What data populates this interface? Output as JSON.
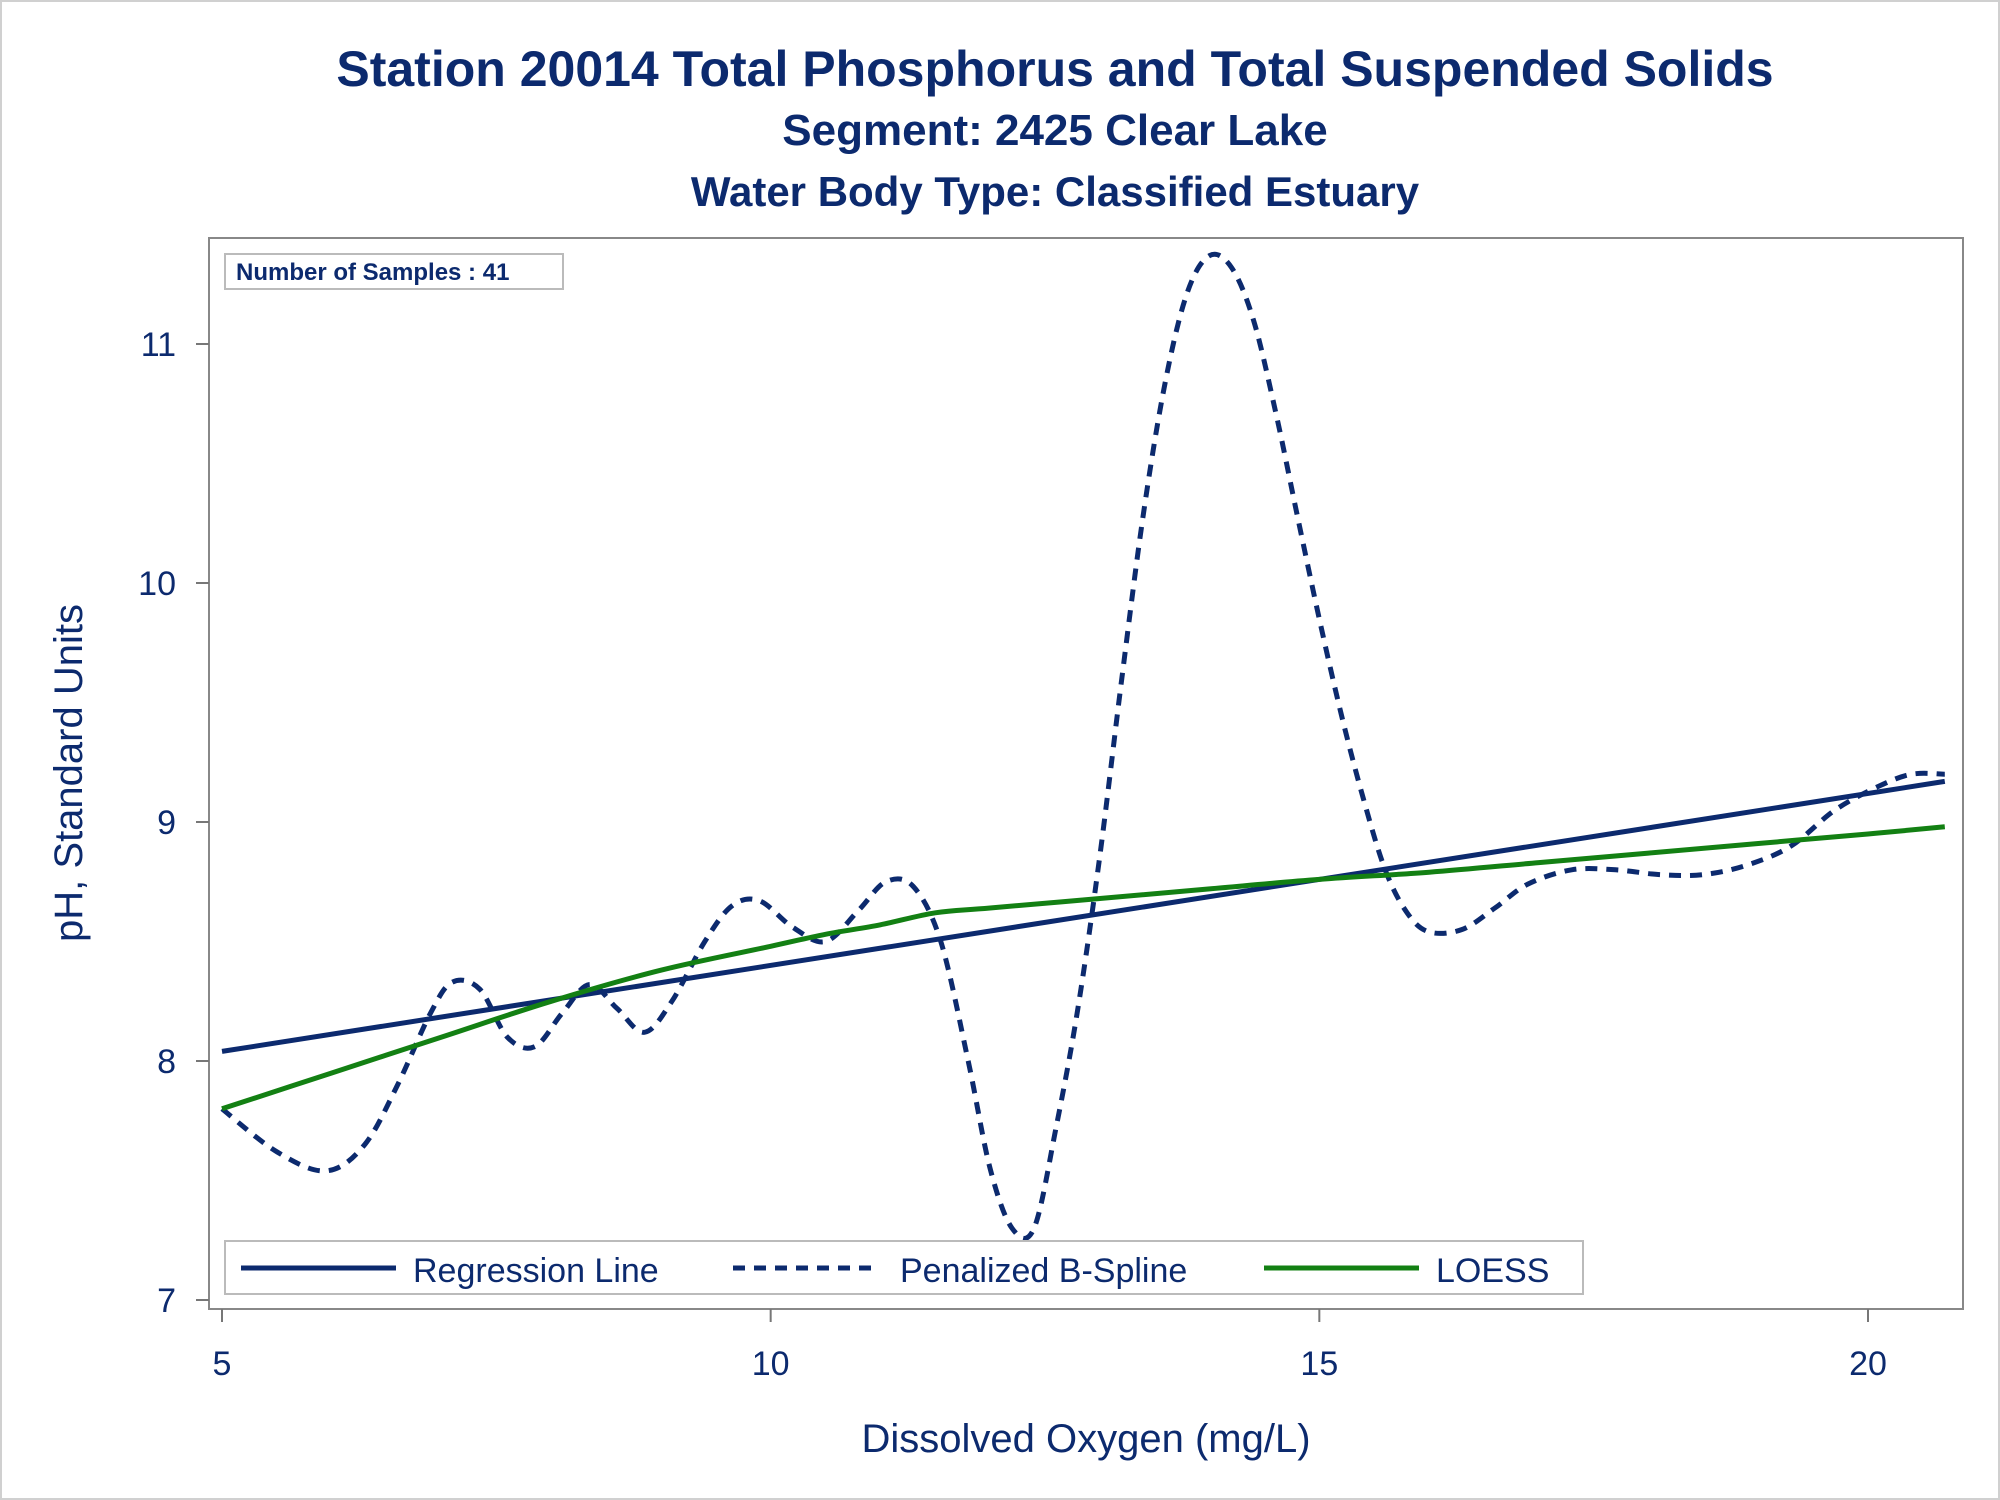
{
  "chart_data": {
    "type": "line",
    "title": "Station 20014  Total Phosphorus and Total Suspended Solids",
    "subtitle": "Segment: 2425  Clear Lake",
    "subtitle2": "Water Body Type: Classified Estuary",
    "xlabel": "Dissolved Oxygen (mg/L)",
    "ylabel": "pH, Standard Units",
    "xlim": [
      5,
      20.85
    ],
    "ylim": [
      6.95,
      11.45
    ],
    "xticks": [
      5,
      10,
      15,
      20
    ],
    "yticks": [
      7,
      8,
      9,
      10,
      11
    ],
    "grid": false,
    "legend_position": "bottom-inside",
    "inset_label": "Number of Samples : 41",
    "colors": {
      "regression": "#0c2a6e",
      "spline": "#0c2a6e",
      "loess": "#138013",
      "text": "#0c2a6e",
      "axis": "#777777"
    },
    "series": [
      {
        "name": "Regression Line",
        "style": "solid",
        "x": [
          5.0,
          20.7
        ],
        "y": [
          8.04,
          9.17
        ]
      },
      {
        "name": "Penalized B-Spline",
        "style": "dashed",
        "x": [
          5.0,
          5.5,
          5.95,
          6.3,
          6.6,
          6.9,
          7.1,
          7.35,
          7.6,
          7.85,
          8.1,
          8.35,
          8.6,
          8.85,
          9.1,
          9.4,
          9.65,
          9.9,
          10.2,
          10.5,
          10.8,
          11.05,
          11.3,
          11.55,
          11.8,
          12.0,
          12.2,
          12.4,
          12.6,
          12.8,
          13.0,
          13.2,
          13.4,
          13.6,
          13.8,
          14.0,
          14.2,
          14.4,
          14.6,
          14.8,
          15.0,
          15.2,
          15.4,
          15.6,
          15.8,
          16.0,
          16.3,
          16.6,
          16.9,
          17.3,
          17.7,
          18.1,
          18.5,
          18.9,
          19.3,
          19.7,
          20.1,
          20.4,
          20.7
        ],
        "y": [
          7.8,
          7.62,
          7.54,
          7.65,
          7.9,
          8.2,
          8.33,
          8.3,
          8.1,
          8.06,
          8.2,
          8.32,
          8.22,
          8.12,
          8.25,
          8.5,
          8.65,
          8.67,
          8.56,
          8.5,
          8.63,
          8.75,
          8.73,
          8.5,
          8.0,
          7.55,
          7.3,
          7.3,
          7.72,
          8.22,
          8.86,
          9.6,
          10.3,
          10.85,
          11.22,
          11.37,
          11.32,
          11.1,
          10.72,
          10.28,
          9.85,
          9.45,
          9.1,
          8.8,
          8.62,
          8.54,
          8.55,
          8.64,
          8.74,
          8.8,
          8.8,
          8.78,
          8.78,
          8.82,
          8.9,
          9.05,
          9.15,
          9.2,
          9.2
        ]
      },
      {
        "name": "LOESS",
        "style": "solid",
        "x": [
          5.0,
          6.0,
          7.0,
          8.0,
          9.0,
          10.0,
          10.5,
          11.0,
          11.5,
          12.0,
          13.0,
          14.0,
          15.0,
          16.0,
          17.0,
          18.0,
          19.0,
          20.0,
          20.7
        ],
        "y": [
          7.8,
          7.95,
          8.1,
          8.25,
          8.38,
          8.48,
          8.53,
          8.57,
          8.62,
          8.64,
          8.68,
          8.72,
          8.76,
          8.79,
          8.83,
          8.87,
          8.91,
          8.95,
          8.98
        ]
      }
    ]
  }
}
